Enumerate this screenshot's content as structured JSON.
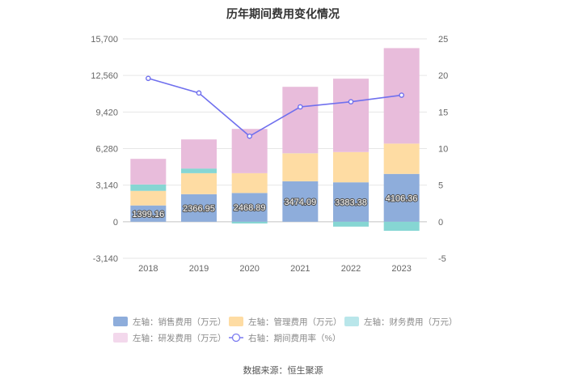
{
  "chart_data": {
    "type": "bar",
    "title": "历年期间费用变化情况",
    "categories": [
      "2018",
      "2019",
      "2020",
      "2021",
      "2022",
      "2023"
    ],
    "left_axis": {
      "ticks": [
        "15,700",
        "12,560",
        "9,420",
        "6,280",
        "3,140",
        "0",
        "-3,140"
      ],
      "ylim": [
        -3140,
        15700
      ]
    },
    "right_axis": {
      "ticks": [
        "25",
        "20",
        "15",
        "10",
        "5",
        "0",
        "-5"
      ],
      "ylim": [
        -5,
        25
      ]
    },
    "series": [
      {
        "name": "左轴：销售费用（万元）",
        "color": "#8eaddb",
        "values": [
          1399.16,
          2366.95,
          2468.89,
          3474.09,
          3383.38,
          4106.36
        ],
        "labels": [
          "1399.16",
          "2366.95",
          "2468.89",
          "3474.09",
          "3383.38",
          "4106.36"
        ]
      },
      {
        "name": "左轴：管理费用（万元）",
        "color": "#fedca3",
        "values": [
          1250,
          1800,
          1700,
          2400,
          2600,
          2600
        ]
      },
      {
        "name": "左轴：财务费用（万元）",
        "color": "#86d6d3",
        "values": [
          550,
          400,
          -150,
          10,
          -420,
          -780
        ]
      },
      {
        "name": "左轴：研发费用（万元）",
        "color": "#e8bcdb",
        "values": [
          2200,
          2500,
          3800,
          5700,
          6300,
          8200
        ]
      }
    ],
    "line": {
      "name": "右轴：期间费用率（%）",
      "color": "#7070ee",
      "values": [
        19.6,
        17.6,
        11.7,
        15.7,
        16.4,
        17.3
      ]
    }
  },
  "legend": [
    {
      "label": "左轴：销售费用（万元）",
      "color": "#8eaddb",
      "kind": "rect"
    },
    {
      "label": "左轴：管理费用（万元）",
      "color": "#fedca3",
      "kind": "rect"
    },
    {
      "label": "左轴：财务费用（万元）",
      "color": "#b9e6ea",
      "kind": "rect"
    },
    {
      "label": "左轴：研发费用（万元）",
      "color": "#f3d8ec",
      "kind": "rect"
    },
    {
      "label": "右轴：期间费用率（%）",
      "color": "#7a7af0",
      "kind": "line"
    }
  ],
  "source": "数据来源：恒生聚源"
}
